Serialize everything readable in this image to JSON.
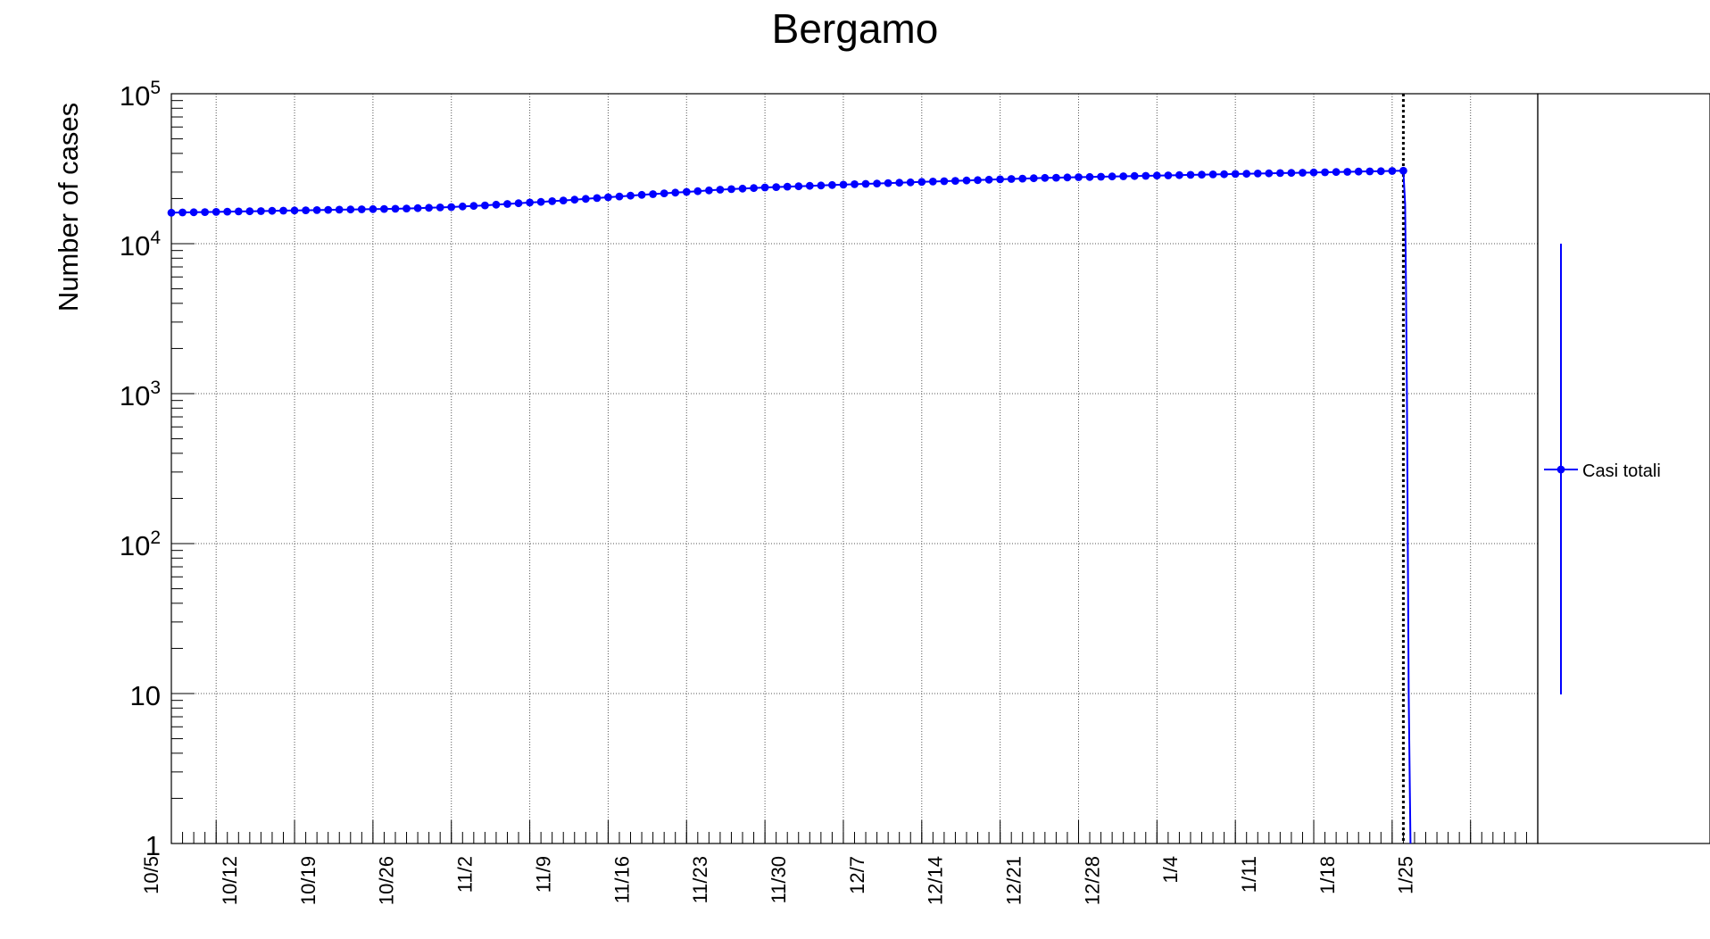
{
  "chart_data": {
    "type": "line",
    "title": "Bergamo",
    "ylabel": "Number of cases",
    "xlabel": "",
    "y_scale": "log",
    "ylim": [
      1,
      100000
    ],
    "xlim": [
      "2020-10-01",
      "2021-01-31"
    ],
    "grid": true,
    "x_tick_labels": [
      "10/5",
      "10/12",
      "10/19",
      "10/26",
      "11/2",
      "11/9",
      "11/16",
      "11/23",
      "11/30",
      "12/7",
      "12/14",
      "12/21",
      "12/28",
      "1/4",
      "1/11",
      "1/18",
      "1/25"
    ],
    "x_ticks": [
      "2020-10-05",
      "2020-10-12",
      "2020-10-19",
      "2020-10-26",
      "2020-11-02",
      "2020-11-09",
      "2020-11-16",
      "2020-11-23",
      "2020-11-30",
      "2020-12-07",
      "2020-12-14",
      "2020-12-21",
      "2020-12-28",
      "2021-01-04",
      "2021-01-11",
      "2021-01-18",
      "2021-01-25"
    ],
    "y_ticks": [
      {
        "base": "10",
        "exp": "5"
      },
      {
        "base": "10",
        "exp": "4"
      },
      {
        "base": "10",
        "exp": "3"
      },
      {
        "base": "10",
        "exp": "2"
      },
      {
        "base": "10",
        "exp": ""
      },
      {
        "base": "1",
        "exp": ""
      }
    ],
    "vertical_marker": {
      "x": "2021-01-19",
      "style": "dotted"
    },
    "legend": {
      "placement": "right",
      "entries": [
        "Casi totali"
      ]
    },
    "series": [
      {
        "name": "Casi totali",
        "color": "#0000ff",
        "x_start": "2020-10-01",
        "x_step_days": 1,
        "values": [
          16100,
          16150,
          16200,
          16250,
          16300,
          16350,
          16400,
          16450,
          16500,
          16550,
          16600,
          16650,
          16700,
          16750,
          16800,
          16850,
          16900,
          16950,
          17000,
          17050,
          17100,
          17150,
          17250,
          17350,
          17450,
          17550,
          17700,
          17850,
          18000,
          18200,
          18400,
          18600,
          18800,
          19000,
          19200,
          19400,
          19650,
          19900,
          20150,
          20400,
          20650,
          20900,
          21150,
          21400,
          21650,
          21900,
          22150,
          22400,
          22650,
          22900,
          23100,
          23300,
          23500,
          23700,
          23850,
          24000,
          24150,
          24300,
          24450,
          24600,
          24750,
          24900,
          25050,
          25200,
          25350,
          25500,
          25650,
          25800,
          25950,
          26100,
          26250,
          26400,
          26550,
          26700,
          26850,
          27000,
          27150,
          27300,
          27450,
          27550,
          27650,
          27750,
          27850,
          27950,
          28050,
          28150,
          28250,
          28350,
          28450,
          28550,
          28650,
          28750,
          28850,
          28950,
          29050,
          29150,
          29250,
          29350,
          29450,
          29550,
          29650,
          29750,
          29850,
          29950,
          30050,
          30150,
          30250,
          30350,
          30450,
          30550,
          30650
        ],
        "drop_to_zero_after": "2021-01-18"
      }
    ]
  }
}
